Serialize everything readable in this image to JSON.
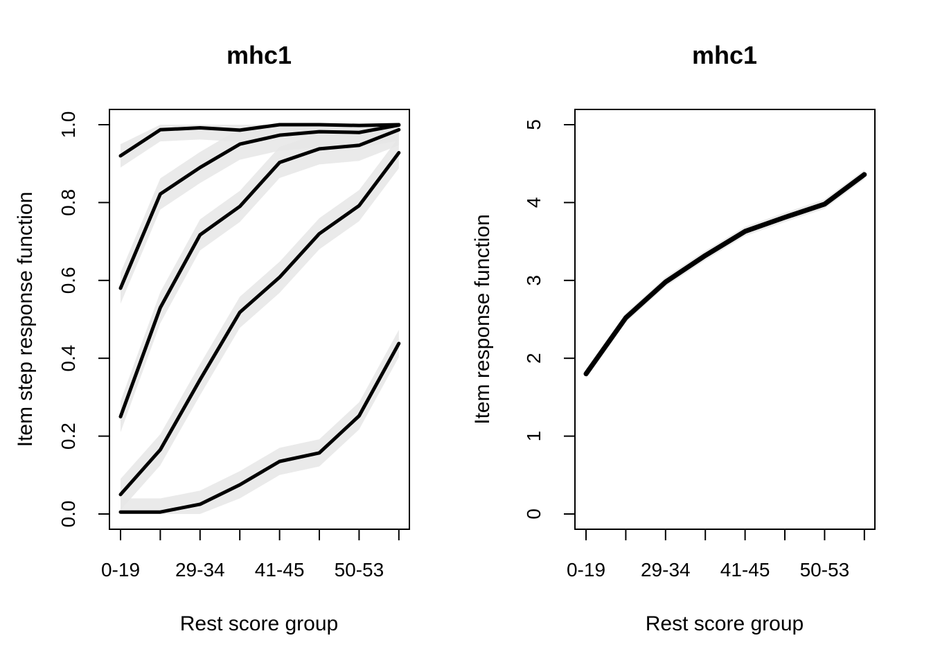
{
  "chart_data": [
    {
      "type": "line",
      "title": "mhc1",
      "xlabel": "Rest score group",
      "ylabel": "Item step response function",
      "x": [
        1,
        2,
        3,
        4,
        5,
        6,
        7,
        8
      ],
      "xtick_labels": [
        "0-19",
        "29-34",
        "41-45",
        "50-53"
      ],
      "xtick_label_positions": [
        1,
        3,
        5,
        7
      ],
      "ylim": [
        0,
        1
      ],
      "yticks": [
        "0.0",
        "0.2",
        "0.4",
        "0.6",
        "0.8",
        "1.0"
      ],
      "grid": false,
      "series": [
        {
          "values": [
            0.92,
            0.987,
            0.992,
            0.986,
            1.0,
            1.0,
            0.998,
            1.0
          ],
          "band_width": 0.03
        },
        {
          "values": [
            0.58,
            0.822,
            0.89,
            0.95,
            0.973,
            0.982,
            0.98,
            0.999
          ],
          "band_width": 0.04
        },
        {
          "values": [
            0.25,
            0.53,
            0.717,
            0.79,
            0.903,
            0.938,
            0.947,
            0.987
          ],
          "band_width": 0.04
        },
        {
          "values": [
            0.05,
            0.165,
            0.345,
            0.518,
            0.608,
            0.72,
            0.792,
            0.928
          ],
          "band_width": 0.04
        },
        {
          "values": [
            0.005,
            0.005,
            0.025,
            0.075,
            0.135,
            0.157,
            0.252,
            0.438
          ],
          "band_width": 0.035
        }
      ]
    },
    {
      "type": "line",
      "title": "mhc1",
      "xlabel": "Rest score group",
      "ylabel": "Item response function",
      "x": [
        1,
        2,
        3,
        4,
        5,
        6,
        7,
        8
      ],
      "xtick_labels": [
        "0-19",
        "29-34",
        "41-45",
        "50-53"
      ],
      "xtick_label_positions": [
        1,
        3,
        5,
        7
      ],
      "ylim": [
        0,
        5
      ],
      "yticks": [
        "0",
        "1",
        "2",
        "3",
        "4",
        "5"
      ],
      "grid": false,
      "series": [
        {
          "values": [
            1.8,
            2.52,
            2.98,
            3.32,
            3.63,
            3.81,
            3.98,
            4.36
          ],
          "band_width": 0.06
        }
      ]
    }
  ]
}
